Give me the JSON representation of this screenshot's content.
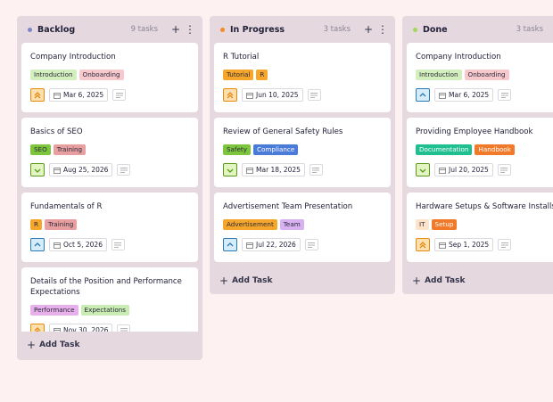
{
  "columns": [
    {
      "title": "Backlog",
      "count": "9 tasks",
      "dot": "#7b86c8",
      "add": "Add Task",
      "cards": [
        {
          "title": "Company Introduction",
          "tags": [
            {
              "name": "Introduction",
              "color": "#d3efbd"
            },
            {
              "name": "Onboarding",
              "color": "#f7c8cc"
            }
          ],
          "date": "Mar 6, 2025"
        },
        {
          "title": "Basics of SEO",
          "tags": [
            {
              "name": "SEO",
              "color": "#7cc53d"
            },
            {
              "name": "Training",
              "color": "#e79f9f"
            }
          ],
          "date": "Aug 25, 2026"
        },
        {
          "title": "Fundamentals of R",
          "tags": [
            {
              "name": "R",
              "color": "#f6a62a"
            },
            {
              "name": "Training",
              "color": "#e79f9f"
            }
          ],
          "date": "Oct 5, 2026"
        },
        {
          "title": "Details of the Position and Performance Expectations",
          "tags": [
            {
              "name": "Performance",
              "color": "#e8b0ea"
            },
            {
              "name": "Expectations",
              "color": "#c9ecb2"
            }
          ],
          "date": "Nov 30, 2026"
        }
      ]
    },
    {
      "title": "In Progress",
      "count": "3 tasks",
      "dot": "#f08a2a",
      "add": "Add Task",
      "cards": [
        {
          "title": "R Tutorial",
          "tags": [
            {
              "name": "Tutorial",
              "color": "#f6a62a"
            },
            {
              "name": "R",
              "color": "#f6a62a"
            }
          ],
          "date": "Jun 10, 2025"
        },
        {
          "title": "Review of General Safety Rules",
          "tags": [
            {
              "name": "Safety",
              "color": "#7cc53d"
            },
            {
              "name": "Compliance",
              "color": "#4a7bd8"
            }
          ],
          "date": "Mar 18, 2025"
        },
        {
          "title": "Advertisement Team Presentation",
          "tags": [
            {
              "name": "Advertisement",
              "color": "#f6a62a"
            },
            {
              "name": "Team",
              "color": "#d8b1f1"
            }
          ],
          "date": "Jul 22, 2026"
        }
      ]
    },
    {
      "title": "Done",
      "count": "3 tasks",
      "dot": "#9fd85a",
      "add": "Add Task",
      "cards": [
        {
          "title": "Company Introduction",
          "tags": [
            {
              "name": "Introduction",
              "color": "#d3efbd"
            },
            {
              "name": "Onboarding",
              "color": "#f7c8cc"
            }
          ],
          "date": "Mar 6, 2025"
        },
        {
          "title": "Providing Employee Handbook",
          "tags": [
            {
              "name": "Documentation",
              "color": "#1fbf8f"
            },
            {
              "name": "Handbook",
              "color": "#f07a2a"
            }
          ],
          "date": "Jul 20, 2025"
        },
        {
          "title": "Hardware Setups & Software Installs",
          "tags": [
            {
              "name": "IT",
              "color": "#fde3c9"
            },
            {
              "name": "Setup",
              "color": "#f07a2a"
            }
          ],
          "date": "Sep 1, 2025"
        }
      ]
    }
  ]
}
